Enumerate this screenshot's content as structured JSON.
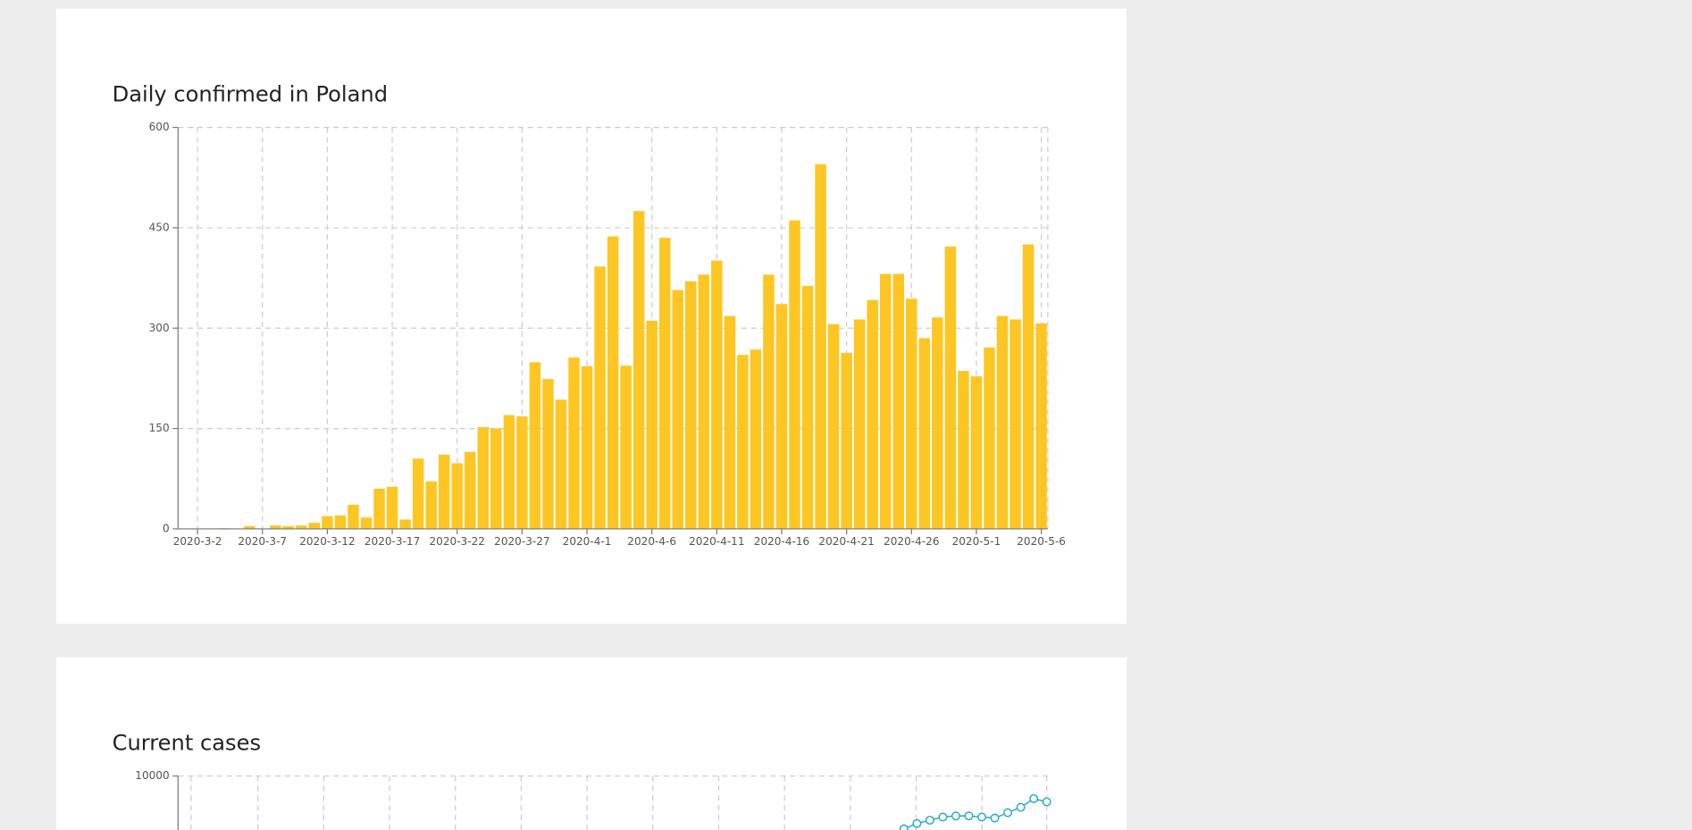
{
  "chart_data": [
    {
      "type": "bar",
      "title": "Daily confirmed in Poland",
      "categories": [
        null,
        "2020-3-2",
        null,
        null,
        null,
        null,
        "2020-3-7",
        null,
        null,
        null,
        null,
        "2020-3-12",
        null,
        null,
        null,
        null,
        "2020-3-17",
        null,
        null,
        null,
        null,
        "2020-3-22",
        null,
        null,
        null,
        null,
        "2020-3-27",
        null,
        null,
        null,
        null,
        "2020-4-1",
        null,
        null,
        null,
        null,
        "2020-4-6",
        null,
        null,
        null,
        null,
        "2020-4-11",
        null,
        null,
        null,
        null,
        "2020-4-16",
        null,
        null,
        null,
        null,
        "2020-4-21",
        null,
        null,
        null,
        null,
        "2020-4-26",
        null,
        null,
        null,
        null,
        "2020-5-1",
        null,
        null,
        null,
        null,
        "2020-5-6"
      ],
      "values": [
        0,
        0,
        0,
        1,
        0,
        4,
        0,
        5,
        4,
        5,
        9,
        19,
        20,
        36,
        17,
        60,
        63,
        14,
        105,
        71,
        111,
        98,
        115,
        152,
        150,
        170,
        168,
        249,
        224,
        193,
        256,
        243,
        392,
        437,
        244,
        475,
        311,
        435,
        357,
        370,
        380,
        401,
        318,
        260,
        268,
        380,
        336,
        461,
        363,
        545,
        306,
        263,
        313,
        342,
        381,
        381,
        344,
        285,
        316,
        422,
        236,
        228,
        271,
        318,
        313,
        425,
        307
      ],
      "color": "#fdc623",
      "ylim": [
        0,
        600
      ],
      "yticks": [
        0,
        150,
        300,
        450,
        600
      ],
      "grid": true
    },
    {
      "type": "line",
      "title": "Current cases",
      "categories": [
        null,
        null,
        null,
        null,
        null,
        null,
        null,
        null,
        null,
        null,
        null,
        null
      ],
      "values": [
        8683,
        8817,
        8898,
        8978,
        9005,
        9005,
        8978,
        8952,
        9086,
        9220,
        9435,
        9355
      ],
      "color": "#23a9cc",
      "ylim": [
        0,
        10000
      ],
      "yticks": [
        10000
      ],
      "grid": true
    }
  ]
}
